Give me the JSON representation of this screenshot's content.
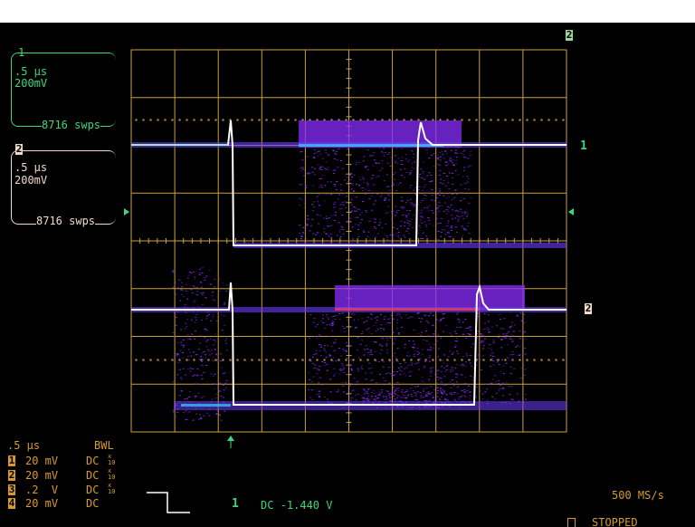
{
  "channel_boxes": [
    {
      "number": "1",
      "timebase": ".5 μs",
      "volts": "200mV",
      "sweeps": "8716 swps"
    },
    {
      "number": "2",
      "timebase": ".5 μs",
      "volts": "200mV",
      "sweeps": "8716 swps"
    }
  ],
  "markers": {
    "ch1_right": "1",
    "ch2_right": "2",
    "ch2_top": "2"
  },
  "status": {
    "timebase": ".5 μs",
    "bwl": "BWL",
    "channels": [
      {
        "num": "1",
        "volts": "20 mV",
        "coupling": "DC",
        "probe": "x10"
      },
      {
        "num": "2",
        "volts": "20 mV",
        "coupling": "DC",
        "probe": "x10"
      },
      {
        "num": "3",
        "volts": ".2  V",
        "coupling": "DC",
        "probe": "x10"
      },
      {
        "num": "4",
        "volts": "20 mV",
        "coupling": "DC",
        "probe": ""
      }
    ],
    "trigger_source": "1",
    "trigger_info": "DC -1.440 V",
    "sample_rate": "500 MS/s",
    "run_state": "STOPPED"
  },
  "colors": {
    "grid": "#c8a040",
    "ch1_box": "#3fd67a",
    "ch2_box": "#f2d9c9",
    "trace": "#ffffff",
    "persistence": "#8a2cff"
  }
}
